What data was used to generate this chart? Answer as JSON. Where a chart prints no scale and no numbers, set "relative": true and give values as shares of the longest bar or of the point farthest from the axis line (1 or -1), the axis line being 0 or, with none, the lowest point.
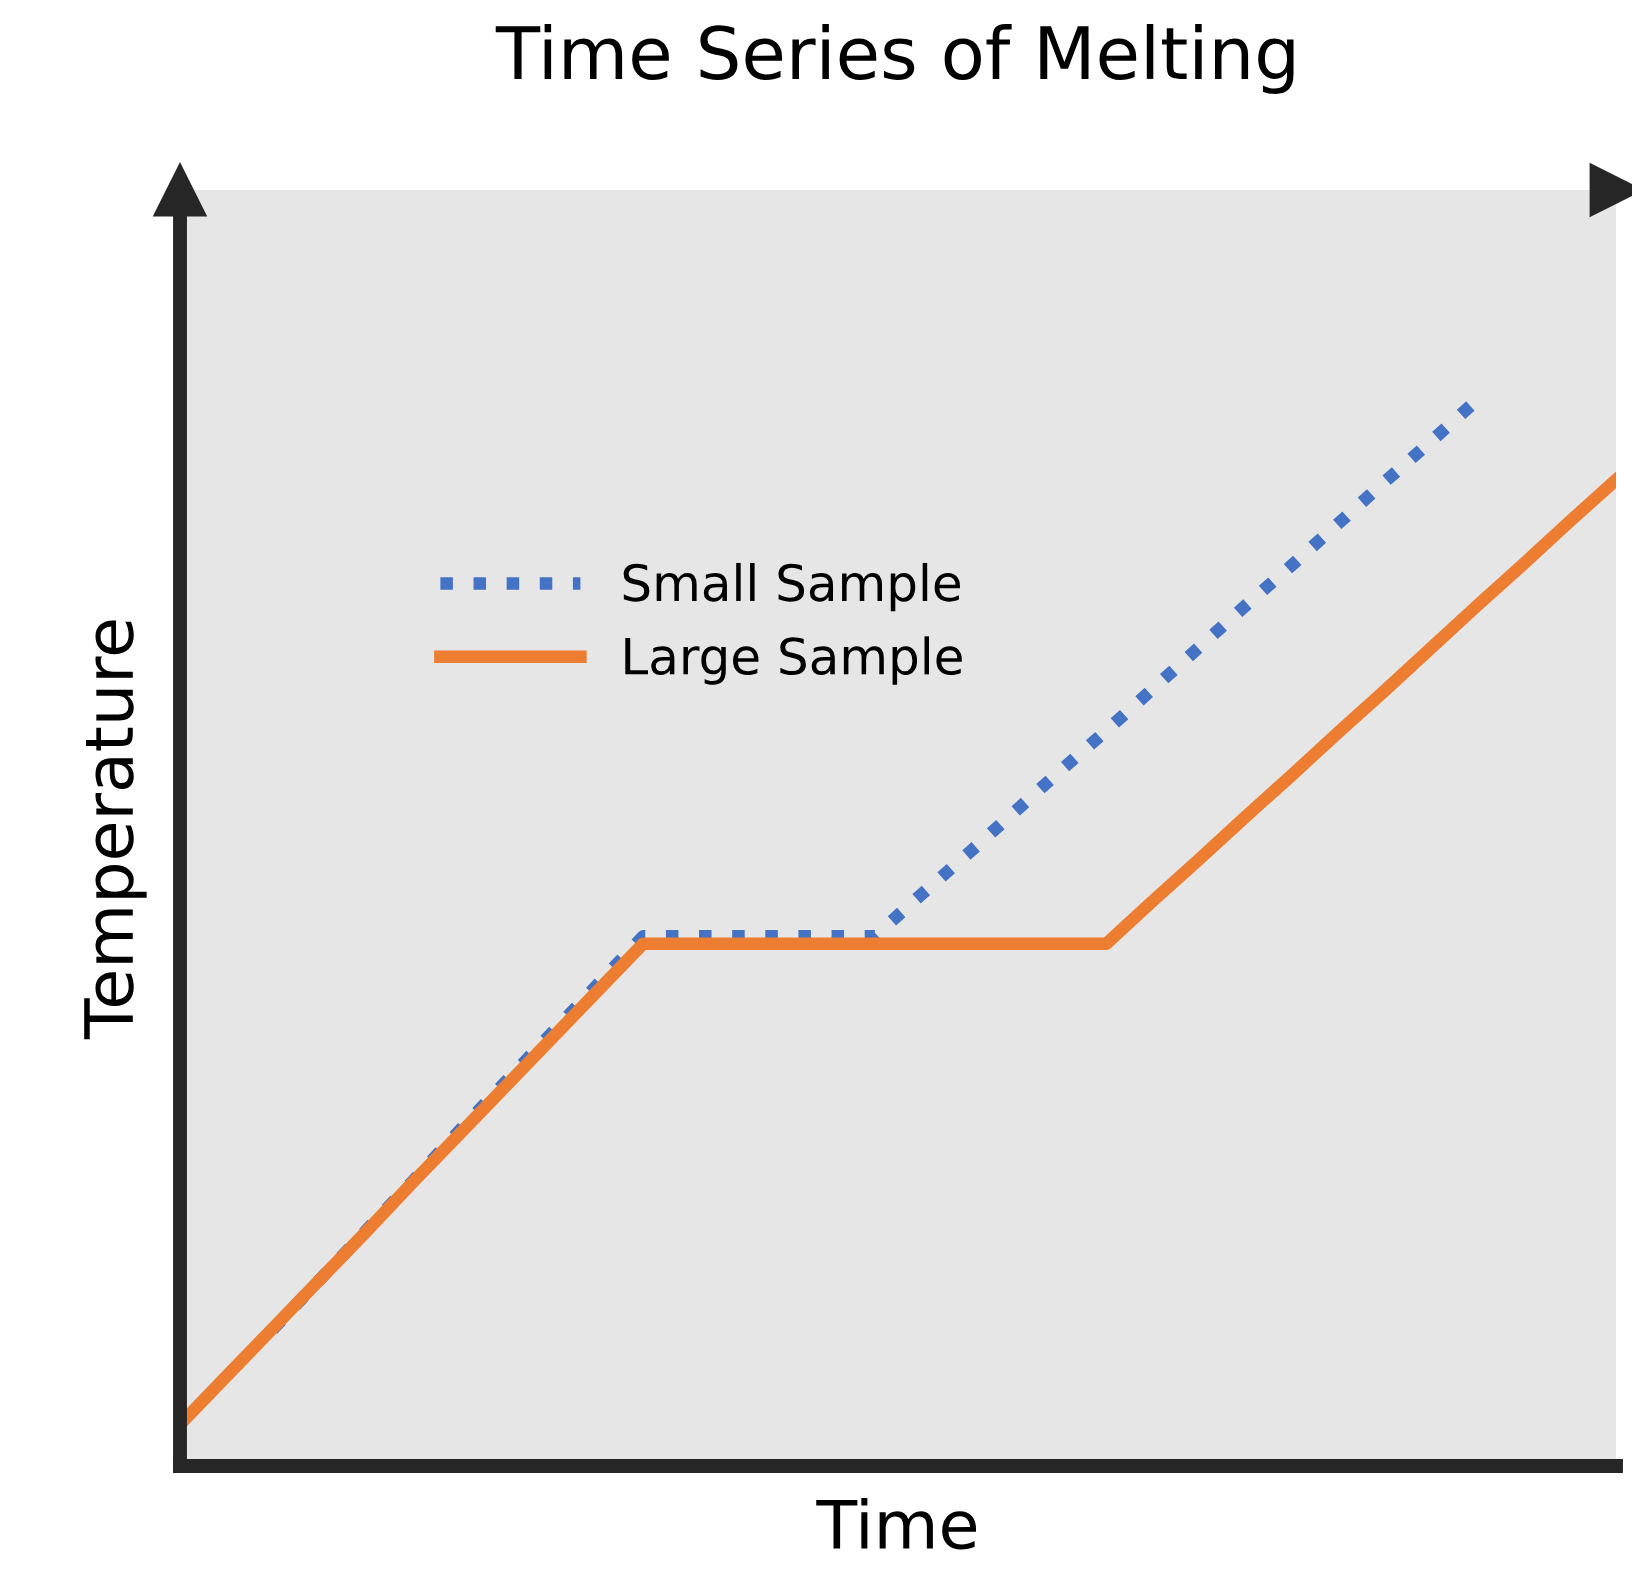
{
  "chart_data": {
    "type": "line",
    "title": "Time Series of Melting",
    "xlabel": "Time",
    "ylabel": "Temperature",
    "relative": true,
    "legend": "left",
    "categories": [
      null,
      null,
      null,
      null,
      null,
      null,
      null,
      null,
      null,
      null,
      null,
      null,
      null,
      null,
      null,
      null,
      null,
      null,
      null,
      null,
      null,
      null,
      null,
      null,
      null,
      null,
      null,
      null,
      null,
      null,
      null,
      null
    ],
    "series": [
      {
        "name": "Small Sample",
        "color": "#4472c4",
        "line_style": "dotted",
        "values": [
          null,
          null,
          0.128,
          0.174,
          0.22,
          0.266,
          0.313,
          0.359,
          0.405,
          0.451,
          0.497,
          0.497,
          0.497,
          0.497,
          0.497,
          0.497,
          0.536,
          0.574,
          0.613,
          0.652,
          0.69,
          0.729,
          0.768,
          0.807,
          0.845,
          0.884,
          0.923,
          0.961,
          1,
          null,
          null,
          null
        ]
      },
      {
        "name": "Large Sample",
        "color": "#ed7d31",
        "line_style": "solid",
        "values": [
          0.039,
          0.084,
          0.129,
          0.174,
          0.219,
          0.265,
          0.31,
          0.355,
          0.4,
          0.445,
          0.49,
          0.49,
          0.49,
          0.49,
          0.49,
          0.49,
          0.49,
          0.49,
          0.49,
          0.49,
          0.49,
          0.53,
          0.569,
          0.609,
          0.648,
          0.688,
          0.727,
          0.767,
          0.807,
          0.846,
          0.886,
          0.925
        ]
      }
    ]
  }
}
